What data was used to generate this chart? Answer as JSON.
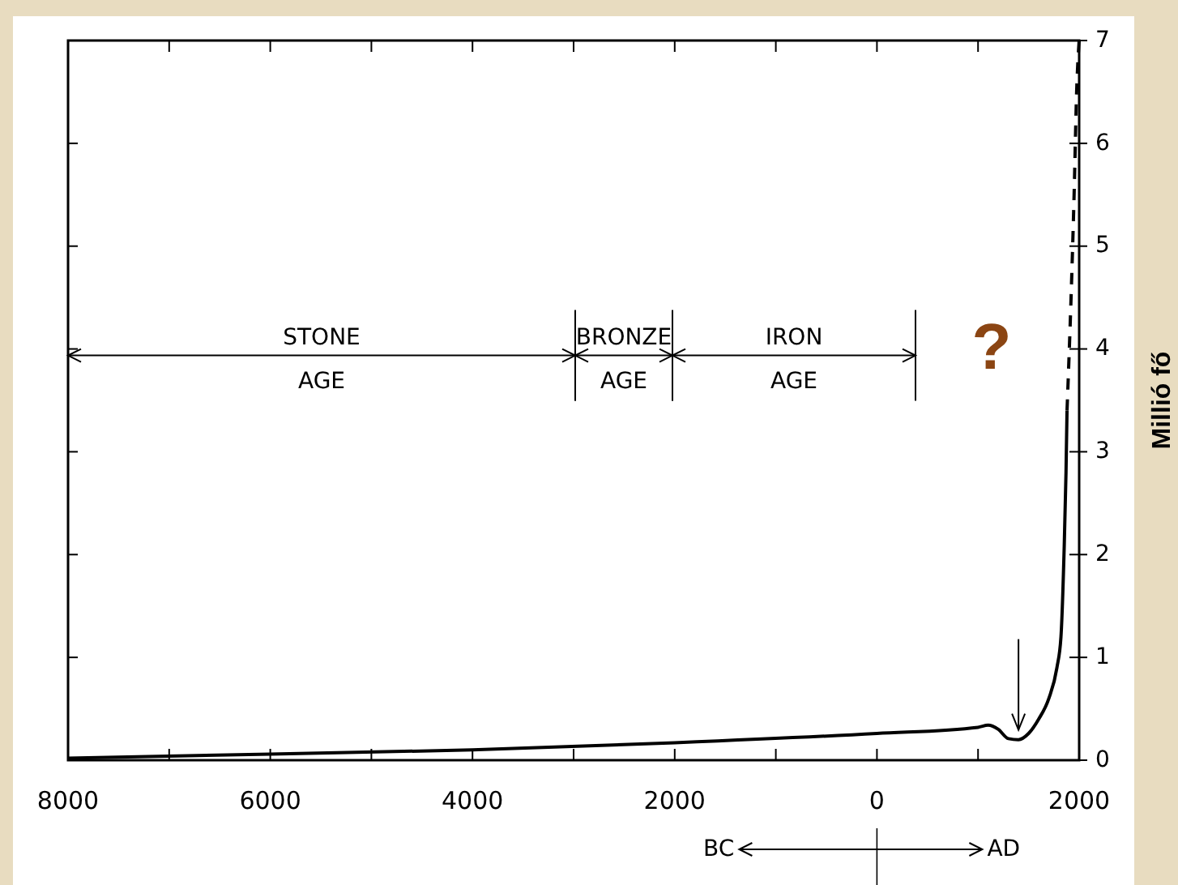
{
  "chart_data": {
    "type": "line",
    "ylabel": "Millió fő",
    "xlim": [
      -8000,
      2000
    ],
    "ylim": [
      0,
      7
    ],
    "xticks": [
      {
        "value": -8000,
        "label": "8000"
      },
      {
        "value": -7000,
        "label": null
      },
      {
        "value": -6000,
        "label": "6000"
      },
      {
        "value": -5000,
        "label": null
      },
      {
        "value": -4000,
        "label": "4000"
      },
      {
        "value": -3000,
        "label": null
      },
      {
        "value": -2000,
        "label": "2000"
      },
      {
        "value": -1000,
        "label": null
      },
      {
        "value": 0,
        "label": "0"
      },
      {
        "value": 1000,
        "label": null
      },
      {
        "value": 2000,
        "label": "2000"
      }
    ],
    "yticks": [
      0,
      1,
      2,
      3,
      4,
      5,
      6,
      7
    ],
    "series": [
      {
        "color": "#000000",
        "line_style": "solid",
        "x": [
          -8000,
          -6000,
          -4000,
          -2000,
          0,
          1000,
          1100,
          1200,
          1300,
          1400,
          1500,
          1600,
          1700,
          1780,
          1820,
          1850,
          1870,
          1880
        ],
        "values": [
          0.02,
          0.06,
          0.1,
          0.17,
          0.26,
          0.32,
          0.34,
          0.3,
          0.21,
          0.2,
          0.26,
          0.4,
          0.6,
          0.9,
          1.2,
          2.0,
          2.8,
          3.4
        ]
      },
      {
        "color": "#000000",
        "line_style": "dashed",
        "x": [
          1880,
          1920,
          1950,
          1975,
          2000
        ],
        "values": [
          3.4,
          4.5,
          5.5,
          6.5,
          7
        ]
      }
    ],
    "annotations": [
      "?",
      "BC",
      "AD",
      "STONE AGE",
      "BRONZE AGE",
      "IRON AGE"
    ]
  }
}
